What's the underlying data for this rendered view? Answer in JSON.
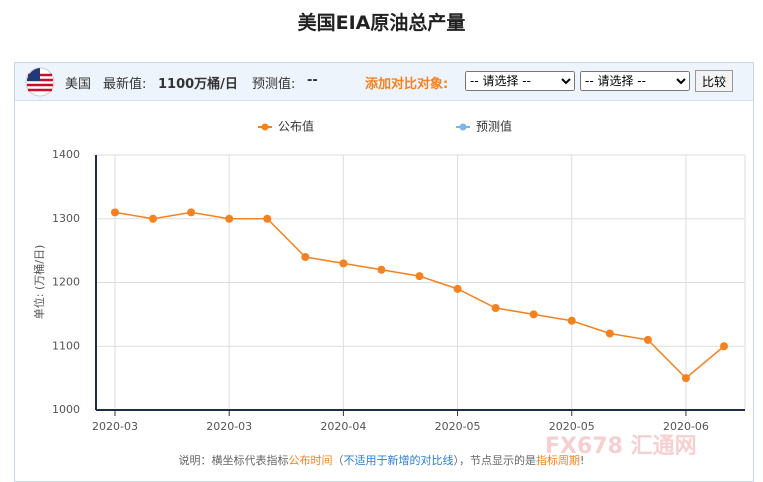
{
  "page_title": "美国EIA原油总产量",
  "header": {
    "country": "美国",
    "latest_label": "最新值:",
    "latest_value": "1100万桶/日",
    "forecast_label": "预测值:",
    "forecast_value": "--",
    "compare_label": "添加对比对象:",
    "select_1": "-- 请选择 --",
    "select_2": "-- 请选择 --",
    "button": "比较"
  },
  "chart_data": {
    "type": "line",
    "ylabel": "单位: (万桶/日)",
    "categories": [
      "2020-03",
      null,
      null,
      "2020-03",
      null,
      null,
      "2020-04",
      null,
      null,
      "2020-05",
      null,
      null,
      "2020-05",
      null,
      null,
      "2020-06",
      null
    ],
    "series": [
      {
        "name": "公布值",
        "color": "#f5821f",
        "values": [
          1310,
          1300,
          1310,
          1300,
          1300,
          1240,
          1230,
          1220,
          1210,
          1190,
          1160,
          1150,
          1140,
          1120,
          1110,
          1050,
          1100
        ]
      },
      {
        "name": "预测值",
        "color": "#7cb5ec",
        "values": [
          null,
          null,
          null,
          null,
          null,
          null,
          null,
          null,
          null,
          null,
          null,
          null,
          null,
          null,
          null,
          null,
          null
        ]
      }
    ],
    "ylim": [
      1000,
      1400
    ],
    "yticks": [
      1000,
      1100,
      1200,
      1300,
      1400
    ],
    "grid": true
  },
  "footnote": [
    "说明：横坐标代表指标",
    "公布时间",
    "（",
    "不适用于新增的对比线",
    "），节点显示的是",
    "指标周期",
    "!"
  ],
  "watermark": "FX678 汇通网"
}
